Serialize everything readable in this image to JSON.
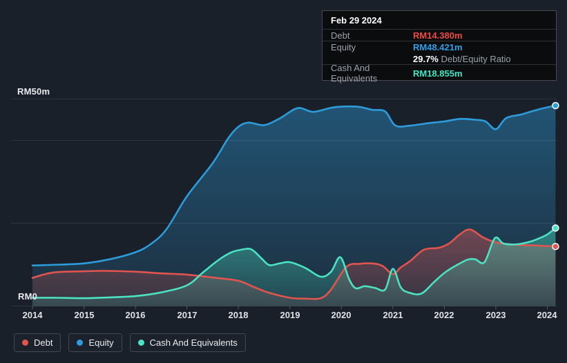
{
  "y_axis": {
    "top_label": "RM50m",
    "bottom_label": "RM0"
  },
  "x_axis": {
    "labels": [
      "2014",
      "2015",
      "2016",
      "2017",
      "2018",
      "2019",
      "2020",
      "2021",
      "2022",
      "2023",
      "2024"
    ]
  },
  "tooltip": {
    "date": "Feb 29 2024",
    "debt": {
      "label": "Debt",
      "value": "RM14.380m",
      "color": "#ef4a42"
    },
    "equity": {
      "label": "Equity",
      "value": "RM48.421m",
      "color": "#2e9fe6"
    },
    "ratio": {
      "value": "29.7%",
      "label": "Debt/Equity Ratio"
    },
    "cash": {
      "label": "Cash And Equivalents",
      "value": "RM18.855m",
      "color": "#3be7c4"
    }
  },
  "legend": {
    "items": [
      {
        "label": "Debt",
        "color": "#e2544e"
      },
      {
        "label": "Equity",
        "color": "#2d9cdb"
      },
      {
        "label": "Cash And Equivalents",
        "color": "#4be3c3"
      }
    ]
  },
  "chart_data": {
    "type": "area",
    "title": "Debt to Equity History",
    "unit": "RM millions",
    "x_range": [
      2014,
      2024.16
    ],
    "ylim": [
      0,
      50
    ],
    "gridlines": [
      0,
      20,
      40,
      50
    ],
    "x_ticks": [
      2014,
      2015,
      2016,
      2017,
      2018,
      2019,
      2020,
      2021,
      2022,
      2023,
      2024
    ],
    "legend_position": "bottom-left",
    "marker_date": "Feb 29 2024",
    "marker_values": {
      "debt": 14.38,
      "equity": 48.421,
      "cash": 18.855,
      "debt_equity_ratio_pct": 29.7
    },
    "series": [
      {
        "name": "Debt",
        "color": "#e2544e",
        "points": [
          [
            2014,
            6.8
          ],
          [
            2014.4,
            8.1
          ],
          [
            2015,
            8.4
          ],
          [
            2015.4,
            8.5
          ],
          [
            2016,
            8.3
          ],
          [
            2016.5,
            7.9
          ],
          [
            2017,
            7.6
          ],
          [
            2017.5,
            6.9
          ],
          [
            2018,
            6.1
          ],
          [
            2018.3,
            4.6
          ],
          [
            2018.6,
            3.2
          ],
          [
            2019,
            2.0
          ],
          [
            2019.3,
            1.8
          ],
          [
            2019.6,
            1.9
          ],
          [
            2019.8,
            4.0
          ],
          [
            2020.1,
            9.5
          ],
          [
            2020.35,
            10.2
          ],
          [
            2020.6,
            10.3
          ],
          [
            2020.8,
            9.7
          ],
          [
            2021,
            7.7
          ],
          [
            2021.15,
            9.3
          ],
          [
            2021.35,
            11.0
          ],
          [
            2021.6,
            13.6
          ],
          [
            2021.9,
            14.1
          ],
          [
            2022.1,
            15.2
          ],
          [
            2022.3,
            17.3
          ],
          [
            2022.5,
            18.5
          ],
          [
            2022.75,
            16.6
          ],
          [
            2023,
            15.4
          ],
          [
            2023.3,
            14.9
          ],
          [
            2023.6,
            14.7
          ],
          [
            2024,
            14.5
          ],
          [
            2024.16,
            14.38
          ]
        ]
      },
      {
        "name": "Equity",
        "color": "#2d9cdb",
        "points": [
          [
            2014,
            9.8
          ],
          [
            2014.5,
            10.0
          ],
          [
            2015,
            10.3
          ],
          [
            2015.5,
            11.3
          ],
          [
            2016,
            13.0
          ],
          [
            2016.3,
            15.0
          ],
          [
            2016.6,
            18.5
          ],
          [
            2017,
            26.5
          ],
          [
            2017.5,
            34.5
          ],
          [
            2017.8,
            40.5
          ],
          [
            2018,
            43.3
          ],
          [
            2018.2,
            44.3
          ],
          [
            2018.5,
            43.7
          ],
          [
            2018.8,
            45.3
          ],
          [
            2019.15,
            47.8
          ],
          [
            2019.45,
            46.9
          ],
          [
            2019.8,
            47.9
          ],
          [
            2020.05,
            48.2
          ],
          [
            2020.35,
            48.1
          ],
          [
            2020.6,
            47.4
          ],
          [
            2020.85,
            47.0
          ],
          [
            2021.05,
            43.6
          ],
          [
            2021.35,
            43.6
          ],
          [
            2021.7,
            44.2
          ],
          [
            2022,
            44.6
          ],
          [
            2022.3,
            45.2
          ],
          [
            2022.6,
            45.0
          ],
          [
            2022.8,
            44.6
          ],
          [
            2023,
            42.7
          ],
          [
            2023.2,
            45.4
          ],
          [
            2023.5,
            46.3
          ],
          [
            2023.8,
            47.4
          ],
          [
            2024,
            48.0
          ],
          [
            2024.16,
            48.421
          ]
        ]
      },
      {
        "name": "Cash And Equivalents",
        "color": "#4be3c3",
        "points": [
          [
            2014,
            2.0
          ],
          [
            2014.5,
            2.0
          ],
          [
            2015,
            1.9
          ],
          [
            2015.5,
            2.1
          ],
          [
            2016,
            2.4
          ],
          [
            2016.5,
            3.3
          ],
          [
            2017,
            5.0
          ],
          [
            2017.3,
            8.0
          ],
          [
            2017.6,
            11.0
          ],
          [
            2017.85,
            12.9
          ],
          [
            2018.05,
            13.6
          ],
          [
            2018.25,
            13.7
          ],
          [
            2018.45,
            11.5
          ],
          [
            2018.6,
            9.9
          ],
          [
            2018.8,
            10.3
          ],
          [
            2019,
            10.6
          ],
          [
            2019.3,
            9.2
          ],
          [
            2019.6,
            7.1
          ],
          [
            2019.8,
            8.3
          ],
          [
            2019.98,
            11.8
          ],
          [
            2020.15,
            6.5
          ],
          [
            2020.28,
            4.3
          ],
          [
            2020.45,
            4.8
          ],
          [
            2020.65,
            4.4
          ],
          [
            2020.85,
            4.0
          ],
          [
            2021,
            9.0
          ],
          [
            2021.15,
            4.6
          ],
          [
            2021.3,
            3.3
          ],
          [
            2021.55,
            3.0
          ],
          [
            2021.8,
            5.8
          ],
          [
            2022,
            8.0
          ],
          [
            2022.2,
            9.6
          ],
          [
            2022.45,
            11.2
          ],
          [
            2022.6,
            11.3
          ],
          [
            2022.78,
            10.6
          ],
          [
            2022.98,
            16.4
          ],
          [
            2023.15,
            15.1
          ],
          [
            2023.4,
            14.9
          ],
          [
            2023.65,
            15.5
          ],
          [
            2023.85,
            16.4
          ],
          [
            2024,
            17.3
          ],
          [
            2024.16,
            18.855
          ]
        ]
      }
    ]
  }
}
